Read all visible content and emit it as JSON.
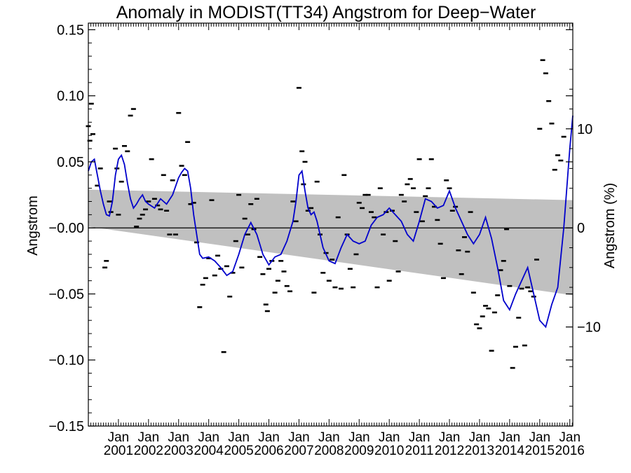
{
  "chart_data": {
    "type": "line",
    "title": "Anomaly in MODIST(TT34) Angstrom for Deep−Water",
    "ylabel": "Angstrom",
    "ylabel_right": "Angstrom (%)",
    "ylim": [
      -0.15,
      0.155
    ],
    "xlim": [
      2000.0,
      2016.1
    ],
    "y_ticks": [
      0.15,
      0.1,
      0.05,
      0.0,
      -0.05,
      -0.1,
      -0.15
    ],
    "y_tick_labels": [
      "0.15",
      "0.10",
      "0.05",
      "−0.00",
      "−0.05",
      "−0.10",
      "−0.15"
    ],
    "y2_ticks": [
      10,
      0,
      -10
    ],
    "y2_tick_labels": [
      "10",
      "0",
      "−10"
    ],
    "y2_scale_note": "10% = 0.075",
    "x_tick_labels": [
      {
        "x": 2001,
        "top": "Jan",
        "bottom": "2001"
      },
      {
        "x": 2002,
        "top": "Jan",
        "bottom": "2002"
      },
      {
        "x": 2003,
        "top": "Jan",
        "bottom": "2003"
      },
      {
        "x": 2004,
        "top": "Jan",
        "bottom": "2004"
      },
      {
        "x": 2005,
        "top": "Jan",
        "bottom": "2005"
      },
      {
        "x": 2006,
        "top": "Jan",
        "bottom": "2006"
      },
      {
        "x": 2007,
        "top": "Jan",
        "bottom": "2007"
      },
      {
        "x": 2008,
        "top": "Jan",
        "bottom": "2008"
      },
      {
        "x": 2009,
        "top": "Jan",
        "bottom": "2009"
      },
      {
        "x": 2010,
        "top": "Jan",
        "bottom": "2010"
      },
      {
        "x": 2011,
        "top": "Jan",
        "bottom": "2011"
      },
      {
        "x": 2012,
        "top": "Jan",
        "bottom": "2012"
      },
      {
        "x": 2013,
        "top": "Jan",
        "bottom": "2013"
      },
      {
        "x": 2014,
        "top": "Jan",
        "bottom": "2014"
      },
      {
        "x": 2015,
        "top": "Jan",
        "bottom": "2015"
      },
      {
        "x": 2016,
        "top": "Jan",
        "bottom": "2016"
      }
    ],
    "zero_line": 0,
    "band": {
      "color": "#c0c0c0",
      "x": [
        2000.0,
        2016.1
      ],
      "upper": [
        0.029,
        0.021
      ],
      "lower": [
        0.001,
        -0.051
      ]
    },
    "series": [
      {
        "kind": "smoothed-line",
        "color": "#0000cc",
        "x": [
          2000.0,
          2000.1,
          2000.2,
          2000.3,
          2000.4,
          2000.5,
          2000.6,
          2000.7,
          2000.8,
          2000.9,
          2001.0,
          2001.1,
          2001.2,
          2001.3,
          2001.4,
          2001.5,
          2001.6,
          2001.7,
          2001.8,
          2001.9,
          2002.0,
          2002.2,
          2002.4,
          2002.6,
          2002.8,
          2003.0,
          2003.1,
          2003.2,
          2003.3,
          2003.4,
          2003.5,
          2003.6,
          2003.7,
          2003.8,
          2004.0,
          2004.2,
          2004.4,
          2004.6,
          2004.8,
          2005.0,
          2005.2,
          2005.4,
          2005.6,
          2005.8,
          2006.0,
          2006.2,
          2006.4,
          2006.6,
          2006.8,
          2006.9,
          2007.0,
          2007.1,
          2007.2,
          2007.3,
          2007.4,
          2007.5,
          2007.6,
          2007.7,
          2007.8,
          2008.0,
          2008.2,
          2008.4,
          2008.6,
          2008.8,
          2009.0,
          2009.2,
          2009.4,
          2009.6,
          2009.8,
          2010.0,
          2010.2,
          2010.4,
          2010.6,
          2010.8,
          2011.0,
          2011.2,
          2011.4,
          2011.6,
          2011.8,
          2012.0,
          2012.2,
          2012.4,
          2012.6,
          2012.8,
          2013.0,
          2013.2,
          2013.4,
          2013.6,
          2013.8,
          2014.0,
          2014.2,
          2014.4,
          2014.6,
          2014.8,
          2015.0,
          2015.2,
          2015.4,
          2015.6,
          2015.8,
          2016.0,
          2016.1
        ],
        "y": [
          0.043,
          0.05,
          0.052,
          0.04,
          0.028,
          0.018,
          0.01,
          0.009,
          0.02,
          0.04,
          0.052,
          0.055,
          0.048,
          0.034,
          0.022,
          0.015,
          0.018,
          0.022,
          0.025,
          0.02,
          0.018,
          0.015,
          0.022,
          0.018,
          0.025,
          0.038,
          0.042,
          0.045,
          0.043,
          0.03,
          0.01,
          -0.005,
          -0.02,
          -0.023,
          -0.022,
          -0.025,
          -0.03,
          -0.036,
          -0.033,
          -0.02,
          -0.005,
          0.004,
          -0.005,
          -0.02,
          -0.028,
          -0.022,
          -0.02,
          -0.01,
          0.005,
          0.02,
          0.04,
          0.043,
          0.028,
          0.015,
          0.01,
          0.012,
          0.005,
          -0.005,
          -0.015,
          -0.025,
          -0.027,
          -0.015,
          -0.005,
          -0.01,
          -0.012,
          -0.01,
          0.002,
          0.008,
          0.01,
          0.015,
          0.01,
          0.005,
          -0.005,
          -0.01,
          0.005,
          0.022,
          0.02,
          0.015,
          0.017,
          0.028,
          0.015,
          0.005,
          -0.005,
          -0.012,
          -0.005,
          0.008,
          -0.008,
          -0.03,
          -0.055,
          -0.062,
          -0.05,
          -0.04,
          -0.03,
          -0.05,
          -0.07,
          -0.075,
          -0.058,
          -0.045,
          0.0,
          0.06,
          0.085
        ],
        "comment": "digitized approximation of the blue smoothed line"
      }
    ],
    "scatter": {
      "marker": "dash",
      "color": "#000000",
      "points": [
        [
          2000.0,
          0.077
        ],
        [
          2000.05,
          0.066
        ],
        [
          2000.1,
          0.094
        ],
        [
          2000.15,
          0.071
        ],
        [
          2000.3,
          0.032
        ],
        [
          2000.4,
          0.045
        ],
        [
          2000.55,
          -0.03
        ],
        [
          2000.6,
          -0.025
        ],
        [
          2000.7,
          0.02
        ],
        [
          2000.75,
          0.012
        ],
        [
          2000.9,
          0.06
        ],
        [
          2000.95,
          0.045
        ],
        [
          2001.0,
          0.01
        ],
        [
          2001.1,
          0.035
        ],
        [
          2001.2,
          0.062
        ],
        [
          2001.3,
          0.058
        ],
        [
          2001.4,
          0.085
        ],
        [
          2001.5,
          0.09
        ],
        [
          2001.6,
          0.001
        ],
        [
          2001.7,
          0.007
        ],
        [
          2001.8,
          0.01
        ],
        [
          2001.9,
          0.014
        ],
        [
          2002.0,
          0.02
        ],
        [
          2002.1,
          0.052
        ],
        [
          2002.2,
          0.022
        ],
        [
          2002.3,
          0.017
        ],
        [
          2002.4,
          0.014
        ],
        [
          2002.5,
          0.04
        ],
        [
          2002.6,
          0.013
        ],
        [
          2002.7,
          -0.005
        ],
        [
          2002.8,
          0.036
        ],
        [
          2002.9,
          -0.005
        ],
        [
          2003.0,
          0.087
        ],
        [
          2003.1,
          0.047
        ],
        [
          2003.2,
          0.04
        ],
        [
          2003.3,
          0.065
        ],
        [
          2003.4,
          0.018
        ],
        [
          2003.5,
          0.019
        ],
        [
          2003.6,
          -0.011
        ],
        [
          2003.7,
          -0.06
        ],
        [
          2003.8,
          -0.043
        ],
        [
          2003.9,
          -0.038
        ],
        [
          2004.0,
          -0.023
        ],
        [
          2004.1,
          0.021
        ],
        [
          2004.2,
          -0.036
        ],
        [
          2004.3,
          -0.021
        ],
        [
          2004.4,
          -0.031
        ],
        [
          2004.5,
          -0.094
        ],
        [
          2004.6,
          -0.029
        ],
        [
          2004.7,
          -0.052
        ],
        [
          2004.8,
          -0.034
        ],
        [
          2004.9,
          -0.01
        ],
        [
          2005.0,
          0.025
        ],
        [
          2005.1,
          -0.03
        ],
        [
          2005.2,
          0.007
        ],
        [
          2005.3,
          -0.005
        ],
        [
          2005.4,
          0.018
        ],
        [
          2005.5,
          -0.001
        ],
        [
          2005.6,
          0.022
        ],
        [
          2005.7,
          -0.022
        ],
        [
          2005.8,
          -0.035
        ],
        [
          2005.9,
          -0.058
        ],
        [
          2005.95,
          -0.063
        ],
        [
          2006.0,
          -0.031
        ],
        [
          2006.1,
          -0.025
        ],
        [
          2006.2,
          -0.049
        ],
        [
          2006.3,
          -0.04
        ],
        [
          2006.4,
          -0.025
        ],
        [
          2006.5,
          -0.033
        ],
        [
          2006.6,
          -0.044
        ],
        [
          2006.7,
          -0.048
        ],
        [
          2006.8,
          0.02
        ],
        [
          2006.9,
          0.005
        ],
        [
          2007.0,
          0.106
        ],
        [
          2007.1,
          0.058
        ],
        [
          2007.15,
          0.033
        ],
        [
          2007.2,
          0.05
        ],
        [
          2007.3,
          0.013
        ],
        [
          2007.4,
          0.015
        ],
        [
          2007.5,
          -0.049
        ],
        [
          2007.6,
          0.035
        ],
        [
          2007.7,
          -0.005
        ],
        [
          2007.8,
          -0.034
        ],
        [
          2007.9,
          -0.019
        ],
        [
          2008.0,
          -0.04
        ],
        [
          2008.1,
          -0.024
        ],
        [
          2008.2,
          -0.045
        ],
        [
          2008.3,
          0.008
        ],
        [
          2008.4,
          -0.046
        ],
        [
          2008.5,
          0.04
        ],
        [
          2008.6,
          -0.005
        ],
        [
          2008.7,
          -0.031
        ],
        [
          2008.8,
          -0.045
        ],
        [
          2008.9,
          -0.02
        ],
        [
          2009.0,
          0.019
        ],
        [
          2009.1,
          0.015
        ],
        [
          2009.2,
          0.025
        ],
        [
          2009.3,
          0.025
        ],
        [
          2009.4,
          0.012
        ],
        [
          2009.5,
          0.008
        ],
        [
          2009.6,
          -0.045
        ],
        [
          2009.7,
          0.03
        ],
        [
          2009.8,
          -0.005
        ],
        [
          2009.9,
          0.012
        ],
        [
          2010.0,
          -0.04
        ],
        [
          2010.1,
          0.013
        ],
        [
          2010.2,
          -0.01
        ],
        [
          2010.3,
          -0.033
        ],
        [
          2010.4,
          0.025
        ],
        [
          2010.5,
          0.02
        ],
        [
          2010.6,
          0.033
        ],
        [
          2010.7,
          0.037
        ],
        [
          2010.8,
          0.03
        ],
        [
          2010.9,
          0.012
        ],
        [
          2011.0,
          0.052
        ],
        [
          2011.1,
          0.005
        ],
        [
          2011.2,
          0.024
        ],
        [
          2011.3,
          0.03
        ],
        [
          2011.4,
          0.052
        ],
        [
          2011.5,
          0.016
        ],
        [
          2011.6,
          0.006
        ],
        [
          2011.7,
          -0.012
        ],
        [
          2011.8,
          -0.038
        ],
        [
          2011.9,
          0.036
        ],
        [
          2012.0,
          0.03
        ],
        [
          2012.1,
          0.013
        ],
        [
          2012.2,
          0.016
        ],
        [
          2012.3,
          -0.017
        ],
        [
          2012.4,
          -0.035
        ],
        [
          2012.5,
          -0.007
        ],
        [
          2012.6,
          -0.018
        ],
        [
          2012.7,
          0.012
        ],
        [
          2012.8,
          -0.049
        ],
        [
          2012.9,
          -0.073
        ],
        [
          2013.0,
          -0.076
        ],
        [
          2013.1,
          -0.067
        ],
        [
          2013.2,
          -0.059
        ],
        [
          2013.3,
          -0.061
        ],
        [
          2013.4,
          -0.093
        ],
        [
          2013.5,
          -0.064
        ],
        [
          2013.6,
          -0.051
        ],
        [
          2013.7,
          -0.032
        ],
        [
          2013.8,
          -0.025
        ],
        [
          2013.9,
          -0.001
        ],
        [
          2014.0,
          -0.044
        ],
        [
          2014.1,
          -0.106
        ],
        [
          2014.2,
          -0.09
        ],
        [
          2014.3,
          -0.068
        ],
        [
          2014.4,
          -0.046
        ],
        [
          2014.5,
          -0.089
        ],
        [
          2014.6,
          -0.045
        ],
        [
          2014.7,
          -0.048
        ],
        [
          2014.8,
          -0.052
        ],
        [
          2014.9,
          -0.024
        ],
        [
          2015.0,
          0.075
        ],
        [
          2015.1,
          0.127
        ],
        [
          2015.2,
          0.117
        ],
        [
          2015.3,
          0.096
        ],
        [
          2015.4,
          0.079
        ],
        [
          2015.5,
          0.044
        ],
        [
          2015.6,
          0.055
        ],
        [
          2015.7,
          0.051
        ],
        [
          2015.8,
          0.069
        ]
      ]
    }
  }
}
